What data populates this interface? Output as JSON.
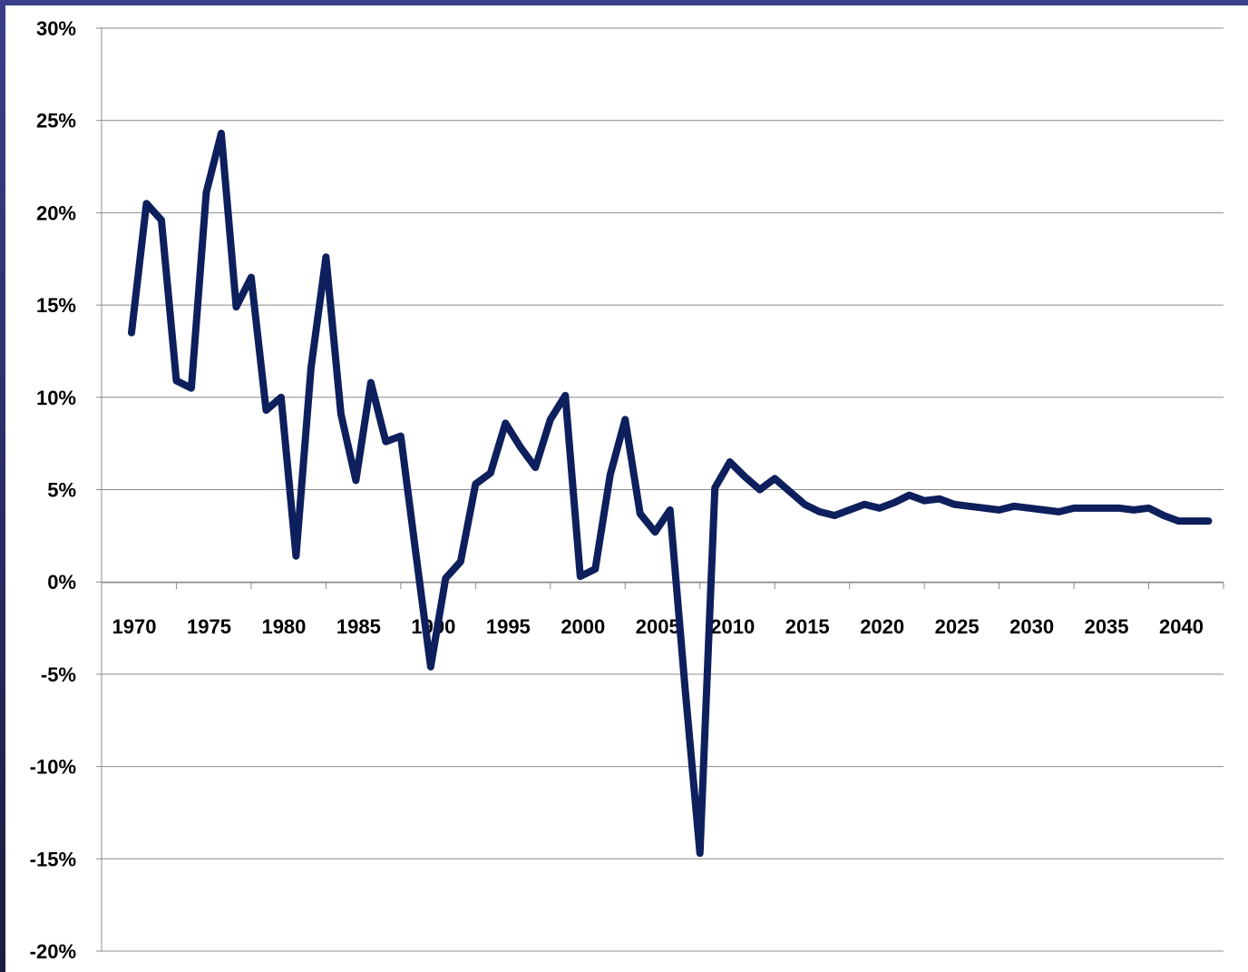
{
  "colors": {
    "line": "#0d1f5c",
    "grid": "#8c8c8c",
    "frame": "#2e2f6e"
  },
  "chart_data": {
    "type": "line",
    "title": "",
    "xlabel": "",
    "ylabel": "",
    "ylim": [
      -0.2,
      0.3
    ],
    "xlim": [
      1970,
      2045
    ],
    "grid": {
      "horizontal": true,
      "vertical": false
    },
    "legend": "none",
    "y_ticks": [
      0.3,
      0.25,
      0.2,
      0.15,
      0.1,
      0.05,
      0.0,
      -0.05,
      -0.1,
      -0.15,
      -0.2
    ],
    "y_tick_labels": [
      "30%",
      "25%",
      "20%",
      "15%",
      "10%",
      "5%",
      "0%",
      "-5%",
      "-10%",
      "-15%",
      "-20%"
    ],
    "x_tick_labels": [
      "1970",
      "1975",
      "1980",
      "1985",
      "1990",
      "1995",
      "2000",
      "2005",
      "2010",
      "2015",
      "2020",
      "2025",
      "2030",
      "2035",
      "2040"
    ],
    "x_tick_values": [
      1970,
      1975,
      1980,
      1985,
      1990,
      1995,
      2000,
      2005,
      2010,
      2015,
      2020,
      2025,
      2030,
      2035,
      2040
    ],
    "series": [
      {
        "x": [
          1972,
          1973,
          1974,
          1975,
          1976,
          1977,
          1978,
          1979,
          1980,
          1981,
          1982,
          1983,
          1984,
          1985,
          1986,
          1987,
          1988,
          1989,
          1990,
          1991,
          1992,
          1993,
          1994,
          1995,
          1996,
          1997,
          1998,
          1999,
          2000,
          2001,
          2002,
          2003,
          2004,
          2005,
          2006,
          2007,
          2008,
          2009,
          2010,
          2011,
          2012,
          2013,
          2014,
          2015,
          2016,
          2017,
          2018,
          2019,
          2020,
          2021,
          2022,
          2023,
          2024,
          2025,
          2026,
          2027,
          2028,
          2029,
          2030,
          2031,
          2032,
          2033,
          2034,
          2035,
          2036,
          2037,
          2038,
          2039,
          2040,
          2041,
          2042,
          2043,
          2044
        ],
        "y": [
          0.135,
          0.205,
          0.196,
          0.109,
          0.105,
          0.211,
          0.243,
          0.149,
          0.165,
          0.093,
          0.1,
          0.014,
          0.116,
          0.176,
          0.091,
          0.055,
          0.108,
          0.076,
          0.079,
          0.016,
          -0.046,
          0.002,
          0.011,
          0.053,
          0.059,
          0.086,
          0.073,
          0.062,
          0.088,
          0.101,
          0.003,
          0.007,
          0.058,
          0.088,
          0.037,
          0.027,
          0.039,
          -0.057,
          -0.147,
          0.051,
          0.065,
          0.057,
          0.05,
          0.056,
          0.049,
          0.042,
          0.038,
          0.036,
          0.039,
          0.042,
          0.04,
          0.043,
          0.047,
          0.044,
          0.045,
          0.042,
          0.041,
          0.04,
          0.039,
          0.041,
          0.04,
          0.039,
          0.038,
          0.04,
          0.04,
          0.04,
          0.04,
          0.039,
          0.04,
          0.036,
          0.033,
          0.033,
          0.033
        ]
      }
    ]
  }
}
